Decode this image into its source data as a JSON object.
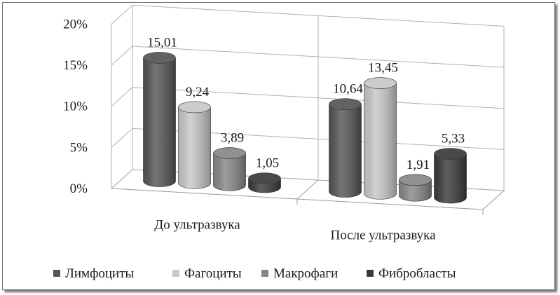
{
  "chart_data": {
    "type": "bar",
    "style": "3d-cylinder",
    "categories": [
      "До ультразвука",
      "После ультразвука"
    ],
    "series": [
      {
        "name": "Лимфоциты",
        "values": [
          15.01,
          10.64
        ],
        "labels": [
          "15,01",
          "10,64"
        ],
        "color": "#555555"
      },
      {
        "name": "Фагоциты",
        "values": [
          9.24,
          13.45
        ],
        "labels": [
          "9,24",
          "13,45"
        ],
        "color": "#c8c8c8"
      },
      {
        "name": "Макрофаги",
        "values": [
          3.89,
          1.91
        ],
        "labels": [
          "3,89",
          "1,91"
        ],
        "color": "#878787"
      },
      {
        "name": "Фибробласты",
        "values": [
          1.05,
          5.33
        ],
        "labels": [
          "1,05",
          "5,33"
        ],
        "color": "#3a3a3a"
      }
    ],
    "yticks": [
      "0%",
      "5%",
      "10%",
      "15%",
      "20%"
    ],
    "ylim": [
      0,
      20
    ],
    "grid": true,
    "legend": "bottom"
  }
}
